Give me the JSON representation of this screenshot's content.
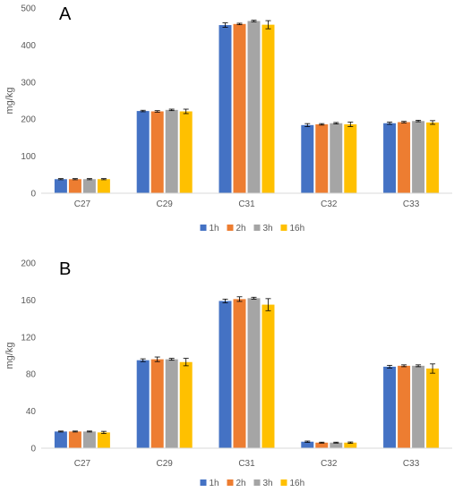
{
  "chart_data": [
    {
      "type": "bar",
      "panel_label": "A",
      "ylabel": "mg/kg",
      "xlabel": "",
      "ylim": [
        0,
        500
      ],
      "yticks": [
        0,
        100,
        200,
        300,
        400,
        500
      ],
      "categories": [
        "C27",
        "C29",
        "C31",
        "C32",
        "C33"
      ],
      "legend_position": "bottom",
      "series": [
        {
          "name": "1h",
          "color": "#4472C4",
          "values": [
            38,
            222,
            454,
            184,
            189
          ],
          "errors": [
            1.5,
            2,
            6,
            4,
            3
          ]
        },
        {
          "name": "2h",
          "color": "#ED7D31",
          "values": [
            38,
            221,
            457,
            186,
            192
          ],
          "errors": [
            1.5,
            2,
            2,
            2,
            2
          ]
        },
        {
          "name": "3h",
          "color": "#A5A5A5",
          "values": [
            38,
            225,
            465,
            189,
            195
          ],
          "errors": [
            1.5,
            2,
            2,
            2,
            2
          ]
        },
        {
          "name": "16h",
          "color": "#FFC000",
          "values": [
            38,
            221,
            455,
            186,
            191
          ],
          "errors": [
            1.5,
            6,
            11,
            6,
            5
          ]
        }
      ]
    },
    {
      "type": "bar",
      "panel_label": "B",
      "ylabel": "mg/kg",
      "xlabel": "",
      "ylim": [
        0,
        200
      ],
      "yticks": [
        0,
        40,
        80,
        120,
        160,
        200
      ],
      "categories": [
        "C27",
        "C29",
        "C31",
        "C32",
        "C33"
      ],
      "legend_position": "bottom",
      "series": [
        {
          "name": "1h",
          "color": "#4472C4",
          "values": [
            18,
            95,
            159,
            7,
            88
          ],
          "errors": [
            0.5,
            1.5,
            2,
            0.7,
            1.5
          ]
        },
        {
          "name": "2h",
          "color": "#ED7D31",
          "values": [
            18,
            96,
            161,
            6,
            89
          ],
          "errors": [
            0.5,
            2.5,
            2.5,
            0.5,
            1
          ]
        },
        {
          "name": "3h",
          "color": "#A5A5A5",
          "values": [
            18,
            96,
            162,
            6,
            89
          ],
          "errors": [
            0.5,
            1,
            1,
            0.5,
            1
          ]
        },
        {
          "name": "16h",
          "color": "#FFC000",
          "values": [
            17,
            93,
            155,
            6,
            86
          ],
          "errors": [
            1.2,
            4,
            6.5,
            0.7,
            5
          ]
        }
      ]
    }
  ]
}
